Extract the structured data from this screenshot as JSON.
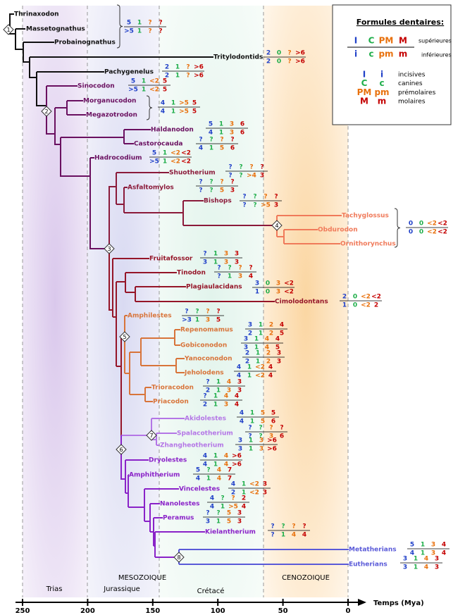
{
  "legend": {
    "title": "Formules dentaires:",
    "upper_symbols": [
      "I",
      "C",
      "PM",
      "M"
    ],
    "lower_symbols": [
      "i",
      "c",
      "pm",
      "m"
    ],
    "upper_label": "supérieures",
    "lower_label": "inférieures",
    "key": [
      {
        "upper": "I",
        "lower": "i",
        "label": "incisives"
      },
      {
        "upper": "C",
        "lower": "c",
        "label": "canines"
      },
      {
        "upper": "PM",
        "lower": "pm",
        "label": "prémolaires"
      },
      {
        "upper": "M",
        "lower": "m",
        "label": "molaires"
      }
    ]
  },
  "taxa": [
    "Thrinaxodon",
    "Massetognathus",
    "Probainognathus",
    "Tritylodontids",
    "Pachygenelus",
    "Sinocodon",
    "Morganucodon",
    "Megazotrodon",
    "Haldanodon",
    "Castorocauda",
    "Hadrocodium",
    "Shuotherium",
    "Asfaltomylos",
    "Bishops",
    "Tachyglossus",
    "Obdurodon",
    "Ornithorynchus",
    "Fruitafossor",
    "Tinodon",
    "Plagiaulacidans",
    "Cimolodontans",
    "Amphilestes",
    "Repenomamus",
    "Gobiconodon",
    "Yanoconodon",
    "Jeholodens",
    "Trioracodon",
    "Priacodon",
    "Akidolestes",
    "Spalacotherium",
    "Zhangheotherium",
    "Dryolestes",
    "Amphitherium",
    "Vincelestes",
    "Nanolestes",
    "Peramus",
    "Kielantherium",
    "Metatherians",
    "Eutherians"
  ],
  "formulas": [
    {
      "upper": [
        "5",
        "1",
        "?",
        "?"
      ],
      "lower": [
        ">5",
        "1",
        "?",
        "?"
      ]
    },
    {
      "upper": [
        "2",
        "0",
        "?",
        ">6"
      ],
      "lower": [
        "2",
        "0",
        "?",
        ">6"
      ]
    },
    {
      "upper": [
        "2",
        "1",
        "?",
        ">6"
      ],
      "lower": [
        "2",
        "1",
        "?",
        ">6"
      ]
    },
    {
      "upper": [
        "5",
        "1",
        "<2",
        "5"
      ],
      "lower": [
        ">5",
        "1",
        "<2",
        "5"
      ]
    },
    {
      "upper": [
        "4",
        "1",
        ">5",
        "5"
      ],
      "lower": [
        "4",
        "1",
        ">5",
        "5"
      ]
    },
    {
      "upper": [
        "5",
        "1",
        "3",
        "6"
      ],
      "lower": [
        "4",
        "1",
        "3",
        "6"
      ]
    },
    {
      "upper": [
        "?",
        "?",
        "?",
        "?"
      ],
      "lower": [
        "4",
        "1",
        "5",
        "6"
      ]
    },
    {
      "upper": [
        "5",
        "1",
        "<2",
        "<2"
      ],
      "lower": [
        ">5",
        "1",
        "<2",
        "<2"
      ]
    },
    {
      "upper": [
        "?",
        "?",
        "?",
        "?"
      ],
      "lower": [
        "?",
        "?",
        ">4",
        "3"
      ]
    },
    {
      "upper": [
        "?",
        "?",
        "?",
        "?"
      ],
      "lower": [
        "?",
        "?",
        "5",
        "3"
      ]
    },
    {
      "upper": [
        "?",
        "?",
        "?",
        "?"
      ],
      "lower": [
        "?",
        "?",
        ">5",
        "3"
      ]
    },
    {
      "upper": [
        "0",
        "0",
        "<2",
        "<2"
      ],
      "lower": [
        "0",
        "0",
        "<2",
        "<2"
      ]
    },
    {
      "upper": [
        "?",
        "1",
        "3",
        "3"
      ],
      "lower": [
        "3",
        "1",
        "3",
        "3"
      ]
    },
    {
      "upper": [
        "?",
        "?",
        "?",
        "?"
      ],
      "lower": [
        "?",
        "1",
        "3",
        "4"
      ]
    },
    {
      "upper": [
        "3",
        "0",
        "3",
        "<2"
      ],
      "lower": [
        "1",
        "0",
        "3",
        "<2"
      ]
    },
    {
      "upper": [
        "2",
        "0",
        "<2",
        "<2"
      ],
      "lower": [
        "1",
        "0",
        "<2",
        "2"
      ]
    },
    {
      "upper": [
        "?",
        "?",
        "?",
        "?"
      ],
      "lower": [
        ">3",
        "1",
        "3",
        "5"
      ]
    },
    {
      "upper": [
        "3",
        "1",
        "2",
        "4"
      ],
      "lower": [
        "2",
        "1",
        "2",
        "5"
      ]
    },
    {
      "upper": [
        "3",
        "1",
        "4",
        "4"
      ],
      "lower": [
        "3",
        "1",
        "4",
        "5"
      ]
    },
    {
      "upper": [
        "2",
        "1",
        "2",
        "3"
      ],
      "lower": [
        "2",
        "1",
        "2",
        "3"
      ]
    },
    {
      "upper": [
        "4",
        "1",
        "<2",
        "4"
      ],
      "lower": [
        "4",
        "1",
        "<2",
        "4"
      ]
    },
    {
      "upper": [
        "?",
        "1",
        "4",
        "3"
      ],
      "lower": [
        "2",
        "1",
        "3",
        "3"
      ]
    },
    {
      "upper": [
        "?",
        "1",
        "4",
        "4"
      ],
      "lower": [
        "2",
        "1",
        "3",
        "4"
      ]
    },
    {
      "upper": [
        "4",
        "1",
        "5",
        "5"
      ],
      "lower": [
        "4",
        "1",
        "5",
        "6"
      ]
    },
    {
      "upper": [
        "?",
        "?",
        "?",
        "?"
      ],
      "lower": [
        "?",
        "?",
        "3",
        "6"
      ]
    },
    {
      "upper": [
        "3",
        "1",
        "3",
        ">6"
      ],
      "lower": [
        "3",
        "1",
        "3",
        ">6"
      ]
    },
    {
      "upper": [
        "4",
        "1",
        "4",
        ">6"
      ],
      "lower": [
        "4",
        "1",
        "4",
        ">6"
      ]
    },
    {
      "upper": [
        "5",
        "?",
        "4",
        "7"
      ],
      "lower": [
        "4",
        "1",
        "4",
        "7"
      ]
    },
    {
      "upper": [
        "4",
        "1",
        "<2",
        "3"
      ],
      "lower": [
        "2",
        "1",
        "<2",
        "3"
      ]
    },
    {
      "upper": [
        "4",
        "?",
        "?",
        "2"
      ],
      "lower": [
        "4",
        "1",
        ">5",
        "4"
      ]
    },
    {
      "upper": [
        "?",
        "?",
        "5",
        "3"
      ],
      "lower": [
        "3",
        "1",
        "5",
        "3"
      ]
    },
    {
      "upper": [
        "?",
        "?",
        "?",
        "?"
      ],
      "lower": [
        "?",
        "1",
        "4",
        "4"
      ]
    },
    {
      "upper": [
        "5",
        "1",
        "3",
        "4"
      ],
      "lower": [
        "4",
        "1",
        "3",
        "4"
      ]
    },
    {
      "upper": [
        "3",
        "1",
        "4",
        "3"
      ],
      "lower": [
        "3",
        "1",
        "4",
        "3"
      ]
    }
  ],
  "nodes": [
    "1",
    "2",
    "3",
    "4",
    "5",
    "6",
    "7",
    "8"
  ],
  "eras": [
    "MESOZOIQUE",
    "CENOZOIQUE"
  ],
  "periods": [
    "Trias",
    "Jurassique",
    "Crétacé"
  ],
  "axis": {
    "label": "Temps (Mya)",
    "ticks": [
      250,
      200,
      150,
      100,
      50,
      0
    ]
  }
}
